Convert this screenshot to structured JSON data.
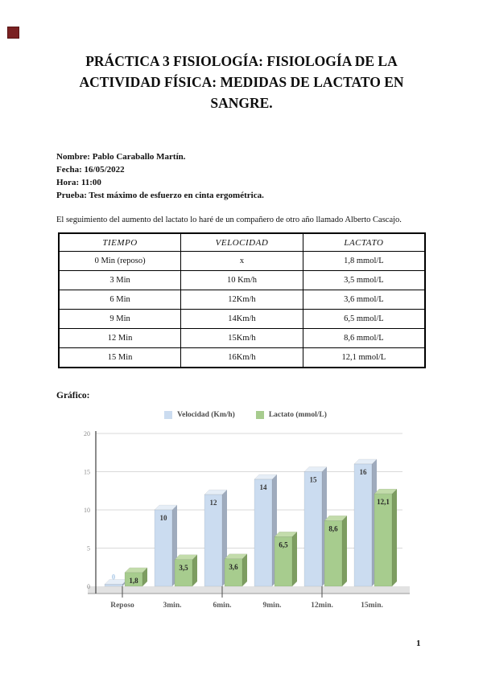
{
  "page": {
    "number": "1"
  },
  "title_lines": [
    "PRÁCTICA 3 FISIOLOGÍA: FISIOLOGÍA DE LA",
    "ACTIVIDAD FÍSICA: MEDIDAS DE LACTATO EN",
    "SANGRE."
  ],
  "meta": [
    {
      "label": "Nombre:",
      "value": "Pablo Caraballo Martín."
    },
    {
      "label": "Fecha:",
      "value": "16/05/2022"
    },
    {
      "label": "Hora:",
      "value": "11:00"
    },
    {
      "label": "Prueba:",
      "value": "Test máximo de esfuerzo en cinta ergométrica."
    }
  ],
  "intro_text": "El seguimiento del aumento del lactato lo haré de un compañero de otro año llamado Alberto Cascajo.",
  "table": {
    "headers": [
      "TIEMPO",
      "VELOCIDAD",
      "LACTATO"
    ],
    "rows": [
      [
        "0 Min (reposo)",
        "x",
        "1,8 mmol/L"
      ],
      [
        "3 Min",
        "10 Km/h",
        "3,5 mmol/L"
      ],
      [
        "6 Min",
        "12Km/h",
        "3,6 mmol/L"
      ],
      [
        "9 Min",
        "14Km/h",
        "6,5 mmol/L"
      ],
      [
        "12 Min",
        "15Km/h",
        "8,6 mmol/L"
      ],
      [
        "15 Min",
        "16Km/h",
        "12,1 mmol/L"
      ]
    ]
  },
  "chart_section_label": "Gráfico:",
  "chart_data": {
    "type": "bar",
    "categories": [
      "Reposo",
      "3min.",
      "6min.",
      "9min.",
      "12min.",
      "15min."
    ],
    "series": [
      {
        "name": "Velocidad (Km/h)",
        "values": [
          0,
          10,
          12,
          14,
          15,
          16
        ],
        "labels": [
          "0",
          "10",
          "12",
          "14",
          "15",
          "16"
        ],
        "color": "#cbdcf0",
        "color_dark": "#9fabbd",
        "color_light": "#e6eef7",
        "label_color": "#3a3a3a",
        "zero_label_color": "#aecbe8"
      },
      {
        "name": "Lactato (mmol/L)",
        "values": [
          1.8,
          3.5,
          3.6,
          6.5,
          8.6,
          12.1
        ],
        "labels": [
          "1,8",
          "3,5",
          "3,6",
          "6,5",
          "8,6",
          "12,1"
        ],
        "color": "#a7cc8e",
        "color_dark": "#7d9d61",
        "color_light": "#c3dcab",
        "label_color": "#262626"
      }
    ],
    "ylim": [
      0,
      20
    ],
    "yticks": [
      0,
      5,
      10,
      15,
      20
    ],
    "grid": true,
    "legend_position": "top",
    "axis_color": "#4d4d4d",
    "gridline_color": "#d9d9d9",
    "ytick_label_color": "#8c8c8c",
    "xtick_label_color": "#595959",
    "floor_color": "#e2e2e2"
  }
}
